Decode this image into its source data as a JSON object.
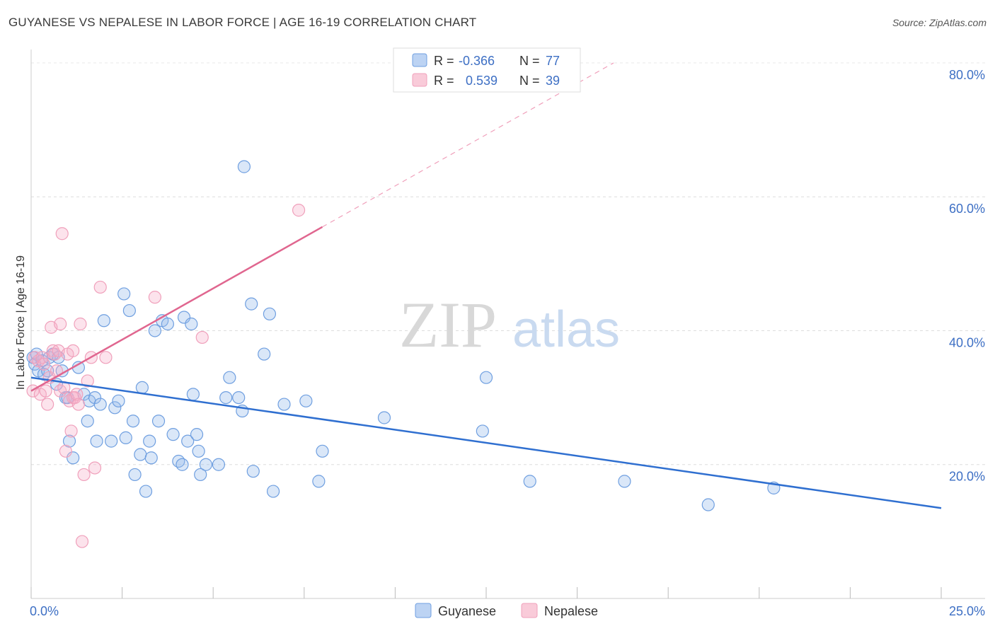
{
  "header": {
    "title": "GUYANESE VS NEPALESE IN LABOR FORCE | AGE 16-19 CORRELATION CHART",
    "source": "Source: ZipAtlas.com"
  },
  "watermark": {
    "zip": "ZIP",
    "atlas": "atlas"
  },
  "colors": {
    "guyanese": "#6f9fe0",
    "guyanese_line": "#2f6fd0",
    "nepalese": "#f0a0bb",
    "nepalese_line": "#e0668f",
    "axis_label": "#3d6fc4",
    "grid": "#dddddd"
  },
  "chart_data": {
    "type": "scatter",
    "xlabel": "",
    "ylabel": "In Labor Force | Age 16-19",
    "xlim": [
      0,
      25
    ],
    "ylim": [
      0,
      82
    ],
    "x_tick_labels": [
      {
        "value": 0,
        "label": "0.0%"
      },
      {
        "value": 25,
        "label": "25.0%"
      }
    ],
    "y_tick_labels": [
      {
        "value": 20,
        "label": "20.0%"
      },
      {
        "value": 40,
        "label": "40.0%"
      },
      {
        "value": 60,
        "label": "60.0%"
      },
      {
        "value": 80,
        "label": "80.0%"
      }
    ],
    "grid": "horizontal dashed",
    "legend": {
      "placement": "top-center",
      "entries": [
        {
          "series": "Guyanese",
          "r_label": "R =",
          "r_value": "-0.366",
          "n_label": "N =",
          "n_value": "77"
        },
        {
          "series": "Nepalese",
          "r_label": "R =",
          "r_value": "0.539",
          "n_label": "N =",
          "n_value": "39"
        }
      ]
    },
    "bottom_legend": [
      "Guyanese",
      "Nepalese"
    ],
    "series": [
      {
        "name": "Guyanese",
        "trend": {
          "x": [
            0,
            25
          ],
          "y": [
            33.0,
            13.5
          ]
        },
        "points": [
          [
            0.05,
            36
          ],
          [
            0.1,
            35
          ],
          [
            0.15,
            36.5
          ],
          [
            0.2,
            34
          ],
          [
            0.3,
            35.5
          ],
          [
            0.35,
            33.5
          ],
          [
            0.45,
            34
          ],
          [
            0.5,
            36
          ],
          [
            0.6,
            36.5
          ],
          [
            0.7,
            32
          ],
          [
            0.75,
            36
          ],
          [
            0.85,
            34
          ],
          [
            0.95,
            30
          ],
          [
            1.0,
            30
          ],
          [
            1.05,
            23.5
          ],
          [
            1.15,
            21
          ],
          [
            1.3,
            34.5
          ],
          [
            1.45,
            30.5
          ],
          [
            1.55,
            26.5
          ],
          [
            1.6,
            29.5
          ],
          [
            1.75,
            30
          ],
          [
            1.8,
            23.5
          ],
          [
            1.9,
            29
          ],
          [
            2.0,
            41.5
          ],
          [
            2.2,
            23.5
          ],
          [
            2.3,
            28.5
          ],
          [
            2.4,
            29.5
          ],
          [
            2.55,
            45.5
          ],
          [
            2.6,
            24
          ],
          [
            2.7,
            43
          ],
          [
            2.8,
            26.5
          ],
          [
            2.85,
            18.5
          ],
          [
            3.0,
            21.5
          ],
          [
            3.05,
            31.5
          ],
          [
            3.15,
            16
          ],
          [
            3.25,
            23.5
          ],
          [
            3.3,
            21
          ],
          [
            3.4,
            40
          ],
          [
            3.5,
            26.5
          ],
          [
            3.6,
            41.5
          ],
          [
            3.75,
            41
          ],
          [
            3.9,
            24.5
          ],
          [
            4.05,
            20.5
          ],
          [
            4.15,
            20
          ],
          [
            4.2,
            42
          ],
          [
            4.3,
            23.5
          ],
          [
            4.4,
            41
          ],
          [
            4.45,
            30.5
          ],
          [
            4.55,
            24.5
          ],
          [
            4.6,
            22
          ],
          [
            4.65,
            18.5
          ],
          [
            4.8,
            20
          ],
          [
            5.15,
            20
          ],
          [
            5.35,
            30
          ],
          [
            5.45,
            33
          ],
          [
            5.7,
            30
          ],
          [
            5.8,
            28
          ],
          [
            5.85,
            64.5
          ],
          [
            6.05,
            44
          ],
          [
            6.1,
            19
          ],
          [
            6.4,
            36.5
          ],
          [
            6.55,
            42.5
          ],
          [
            6.65,
            16
          ],
          [
            6.95,
            29
          ],
          [
            7.55,
            29.5
          ],
          [
            7.9,
            17.5
          ],
          [
            8.0,
            22
          ],
          [
            9.7,
            27
          ],
          [
            12.4,
            25
          ],
          [
            12.5,
            33
          ],
          [
            13.7,
            17.5
          ],
          [
            16.3,
            17.5
          ],
          [
            18.6,
            14
          ],
          [
            20.4,
            16.5
          ]
        ]
      },
      {
        "name": "Nepalese",
        "trend": {
          "x": [
            0,
            8
          ],
          "y": [
            31.0,
            55.5
          ]
        },
        "trend_extension": {
          "x": [
            8,
            16
          ],
          "y": [
            55.5,
            80
          ]
        },
        "points": [
          [
            0.05,
            31
          ],
          [
            0.1,
            36
          ],
          [
            0.2,
            35.5
          ],
          [
            0.25,
            30.5
          ],
          [
            0.3,
            36
          ],
          [
            0.35,
            35
          ],
          [
            0.4,
            31
          ],
          [
            0.45,
            29
          ],
          [
            0.5,
            33
          ],
          [
            0.55,
            40.5
          ],
          [
            0.6,
            37
          ],
          [
            0.65,
            36.5
          ],
          [
            0.7,
            34
          ],
          [
            0.75,
            37
          ],
          [
            0.8,
            41
          ],
          [
            0.8,
            31
          ],
          [
            0.85,
            54.5
          ],
          [
            0.9,
            31.5
          ],
          [
            0.95,
            22
          ],
          [
            1.0,
            36.5
          ],
          [
            1.05,
            29.5
          ],
          [
            1.1,
            25
          ],
          [
            1.15,
            30
          ],
          [
            1.2,
            30
          ],
          [
            1.25,
            30.5
          ],
          [
            1.3,
            29
          ],
          [
            1.35,
            41
          ],
          [
            1.4,
            8.5
          ],
          [
            1.45,
            18.5
          ],
          [
            1.55,
            32.5
          ],
          [
            1.65,
            36
          ],
          [
            1.75,
            19.5
          ],
          [
            1.9,
            46.5
          ],
          [
            2.05,
            36
          ],
          [
            3.4,
            45
          ],
          [
            4.7,
            39
          ],
          [
            7.35,
            58
          ],
          [
            1.15,
            37
          ]
        ]
      }
    ]
  }
}
